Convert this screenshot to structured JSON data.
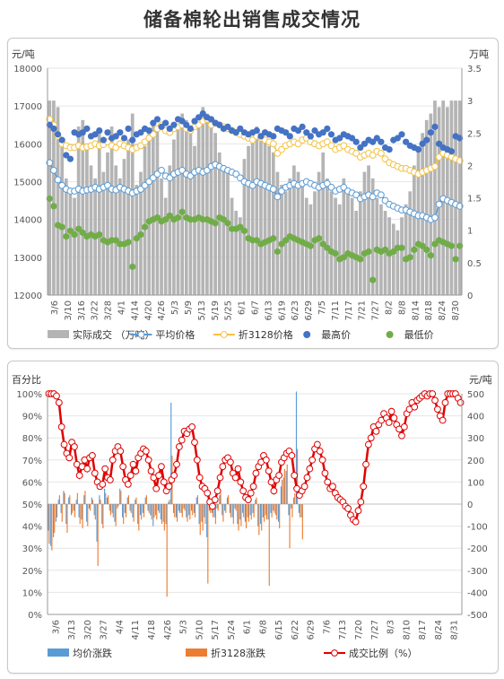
{
  "title": "储备棉轮出销售成交情况",
  "chart_data": [
    {
      "type": "line",
      "y_label_left": "元/吨",
      "y_label_right": "万吨",
      "ylim_left": [
        12000,
        18000
      ],
      "yticks_left": [
        "18000",
        "17000",
        "16000",
        "15000",
        "14000",
        "13000",
        "12000"
      ],
      "ylim_right": [
        0,
        3.5
      ],
      "yticks_right": [
        "3.5",
        "3",
        "2.5",
        "2",
        "1.5",
        "1",
        "0.5",
        "0"
      ],
      "x_ticks": [
        "3/6",
        "3/10",
        "3/16",
        "3/22",
        "3/28",
        "4/1",
        "4/14",
        "4/20",
        "4/26",
        "5/3",
        "5/9",
        "5/13",
        "5/19",
        "5/25",
        "6/1",
        "6/7",
        "6/13",
        "6/19",
        "6/23",
        "6/29",
        "7/5",
        "7/11",
        "7/17",
        "7/21",
        "7/27",
        "8/2",
        "8/8",
        "8/14",
        "8/18",
        "8/24",
        "8/30"
      ],
      "series": [
        {
          "name": "实际成交 （万吨）",
          "kind": "bar",
          "axis": "right",
          "color": "#b4b4b4",
          "values": [
            3.0,
            3.0,
            2.9,
            2.4,
            1.8,
            1.6,
            1.5,
            2.6,
            2.7,
            2.3,
            2.0,
            1.8,
            2.5,
            1.9,
            2.2,
            2.6,
            2.0,
            1.8,
            2.1,
            2.4,
            2.8,
            1.7,
            1.9,
            2.3,
            2.5,
            2.7,
            2.6,
            1.8,
            1.5,
            2.0,
            2.4,
            2.6,
            2.8,
            2.7,
            2.5,
            2.3,
            2.6,
            2.9,
            2.8,
            2.7,
            2.5,
            2.2,
            2.0,
            1.9,
            1.5,
            1.3,
            1.2,
            2.1,
            2.3,
            2.4,
            2.6,
            2.5,
            2.4,
            2.3,
            2.2,
            1.9,
            1.7,
            1.6,
            1.8,
            2.0,
            1.9,
            1.7,
            1.5,
            1.4,
            1.6,
            1.9,
            2.2,
            1.8,
            1.6,
            1.5,
            1.4,
            1.8,
            1.6,
            1.5,
            1.3,
            1.6,
            1.9,
            2.0,
            1.8,
            1.5,
            1.4,
            1.3,
            1.2,
            1.1,
            1.0,
            1.2,
            1.4,
            1.6,
            2.0,
            2.3,
            2.5,
            2.7,
            2.8,
            3.0,
            2.9,
            3.0,
            2.9,
            3.0,
            3.0,
            3.0
          ]
        },
        {
          "name": "平均价格",
          "kind": "line-marker",
          "axis": "left",
          "color": "#5b9bd5",
          "values": [
            15500,
            15300,
            15050,
            14900,
            14800,
            14750,
            14750,
            14800,
            14750,
            14780,
            14800,
            14850,
            14800,
            14850,
            14900,
            14800,
            14780,
            14850,
            14800,
            14750,
            14700,
            14750,
            14800,
            14900,
            15000,
            15100,
            15200,
            15300,
            15150,
            15100,
            15200,
            15250,
            15300,
            15200,
            15150,
            15250,
            15300,
            15250,
            15300,
            15400,
            15450,
            15400,
            15350,
            15300,
            15250,
            15200,
            15100,
            15000,
            14950,
            14900,
            15000,
            14950,
            14900,
            14850,
            14800,
            14600,
            14750,
            14850,
            14900,
            14950,
            14900,
            14950,
            15000,
            14950,
            14900,
            14850,
            14900,
            14950,
            14850,
            14750,
            14800,
            14850,
            14750,
            14700,
            14650,
            14550,
            14600,
            14650,
            14600,
            14700,
            14650,
            14500,
            14400,
            14350,
            14300,
            14250,
            14250,
            14200,
            14150,
            14100,
            14100,
            14050,
            14000,
            14050,
            14400,
            14550,
            14500,
            14450,
            14400,
            14350
          ]
        },
        {
          "name": "折3128价格",
          "kind": "line-marker",
          "axis": "left",
          "color": "#f5c242",
          "values": [
            16650,
            16500,
            16200,
            16000,
            15950,
            15900,
            15900,
            15950,
            15900,
            15920,
            15950,
            16000,
            15950,
            15980,
            16050,
            15950,
            15900,
            16000,
            15950,
            15900,
            15850,
            15900,
            15950,
            16050,
            16150,
            16250,
            16400,
            16500,
            16350,
            16300,
            16400,
            16450,
            16500,
            16400,
            16350,
            16450,
            16500,
            16600,
            16650,
            16500,
            16550,
            16500,
            16450,
            16400,
            16350,
            16300,
            16250,
            16200,
            16150,
            16100,
            16200,
            16150,
            16100,
            16050,
            16000,
            15750,
            15850,
            15950,
            16000,
            16050,
            16000,
            16100,
            16150,
            16050,
            16000,
            15950,
            16000,
            16050,
            15950,
            15850,
            15900,
            15950,
            15850,
            15800,
            15750,
            15650,
            15700,
            15750,
            15700,
            15800,
            15750,
            15600,
            15500,
            15450,
            15400,
            15350,
            15350,
            15300,
            15250,
            15200,
            15250,
            15300,
            15350,
            15400,
            15650,
            15750,
            15700,
            15650,
            15600,
            15550
          ]
        },
        {
          "name": "最高价",
          "kind": "scatter",
          "axis": "left",
          "color": "#4472c4",
          "values": [
            16500,
            16400,
            16250,
            16100,
            15700,
            15600,
            16300,
            16250,
            16300,
            16400,
            16200,
            16250,
            16350,
            16100,
            16300,
            16150,
            16200,
            16300,
            16150,
            16400,
            16100,
            16250,
            16300,
            16400,
            16350,
            16550,
            16650,
            16450,
            16550,
            16400,
            16500,
            16650,
            16600,
            16500,
            16400,
            16600,
            16700,
            16800,
            16700,
            16650,
            16550,
            16500,
            16400,
            16450,
            16350,
            16300,
            16400,
            16300,
            16250,
            16300,
            16350,
            16200,
            16300,
            16250,
            16200,
            16400,
            16350,
            16300,
            16200,
            16400,
            16350,
            16450,
            16300,
            16200,
            16350,
            16250,
            16300,
            16400,
            16250,
            16100,
            16150,
            16250,
            16200,
            16150,
            16050,
            15900,
            16000,
            16100,
            16050,
            16150,
            16050,
            15900,
            15850,
            16100,
            16150,
            16250,
            16050,
            15950,
            15900,
            15850,
            16000,
            16100,
            16300,
            16450,
            16000,
            15900,
            15850,
            15800,
            16200,
            16150
          ]
        },
        {
          "name": "最低价",
          "kind": "scatter",
          "axis": "left",
          "color": "#70ad47",
          "values": [
            14550,
            14350,
            13850,
            13800,
            13550,
            13700,
            13600,
            13750,
            13650,
            13550,
            13600,
            13550,
            13600,
            13450,
            13400,
            13450,
            13450,
            13350,
            13350,
            13400,
            12750,
            13500,
            13600,
            13800,
            13950,
            14000,
            14050,
            13950,
            14000,
            14100,
            14000,
            14050,
            14200,
            14050,
            14000,
            14000,
            14050,
            14000,
            14000,
            13950,
            13900,
            14050,
            14000,
            13900,
            13750,
            13750,
            13800,
            13700,
            13500,
            13450,
            13450,
            13350,
            13400,
            13450,
            13500,
            13150,
            13350,
            13450,
            13550,
            13500,
            13450,
            13400,
            13350,
            13300,
            13450,
            13500,
            13350,
            13250,
            13150,
            13100,
            12950,
            13000,
            13100,
            13050,
            13000,
            12950,
            13100,
            13150,
            12400,
            13200,
            13150,
            13200,
            13100,
            13150,
            13250,
            13250,
            12950,
            13000,
            13200,
            13350,
            13300,
            13200,
            13050,
            13350,
            13450,
            13400,
            13350,
            13300,
            12950,
            13300
          ]
        }
      ],
      "legend": "bottom"
    },
    {
      "type": "bar",
      "y_label_left": "百分比",
      "y_label_right": "元/吨",
      "ylim_left": [
        0,
        100
      ],
      "yticks_left": [
        "100%",
        "90%",
        "80%",
        "70%",
        "60%",
        "50%",
        "40%",
        "30%",
        "20%",
        "10%",
        "0%"
      ],
      "ylim_right": [
        -500,
        500
      ],
      "yticks_right": [
        "500",
        "400",
        "300",
        "200",
        "100",
        "0",
        "-100",
        "-200",
        "-300",
        "-400",
        "-500"
      ],
      "x_ticks": [
        "3/6",
        "3/13",
        "3/20",
        "3/27",
        "4/4",
        "4/11",
        "4/18",
        "4/26",
        "5/3",
        "5/10",
        "5/17",
        "5/24",
        "6/1",
        "6/8",
        "6/15",
        "6/22",
        "6/29",
        "7/6",
        "7/13",
        "7/20",
        "7/27",
        "8/3",
        "8/10",
        "8/17",
        "8/24",
        "8/31"
      ],
      "series": [
        {
          "name": "均价涨跌",
          "kind": "bar",
          "axis": "right",
          "color": "#5b9bd5",
          "values": [
            -120,
            -190,
            -150,
            -80,
            20,
            -40,
            60,
            -90,
            30,
            -50,
            -30,
            20,
            -60,
            -70,
            40,
            -80,
            -20,
            30,
            -50,
            -170,
            40,
            -90,
            70,
            30,
            -30,
            -40,
            -80,
            -20,
            70,
            -60,
            -40,
            30,
            -30,
            -60,
            20,
            -90,
            -50,
            -40,
            30,
            -30,
            -50,
            -100,
            -50,
            -30,
            -70,
            -80,
            -90,
            10,
            460,
            -40,
            -60,
            -30,
            -40,
            -20,
            -60,
            -50,
            -30,
            -40,
            30,
            -90,
            -80,
            -60,
            -150,
            -30,
            -40,
            -60,
            -20,
            40,
            -50,
            -30,
            30,
            -40,
            -60,
            -20,
            -90,
            -70,
            -40,
            -80,
            -60,
            -50,
            -40,
            20,
            -100,
            -90,
            -60,
            -50,
            -70,
            -40,
            -30,
            -50,
            -80,
            80,
            120,
            150,
            -50,
            -20,
            30,
            510,
            -40,
            -60
          ]
        },
        {
          "name": "折3128涨跌",
          "kind": "bar",
          "axis": "right",
          "color": "#ed7d31",
          "values": [
            -180,
            -210,
            -130,
            -60,
            40,
            -80,
            50,
            -130,
            40,
            -40,
            -60,
            50,
            -90,
            -110,
            60,
            -100,
            -30,
            20,
            -70,
            -280,
            20,
            -110,
            50,
            40,
            -50,
            -60,
            -100,
            -10,
            60,
            -90,
            -60,
            40,
            -40,
            -80,
            30,
            -120,
            -70,
            -60,
            40,
            -40,
            -70,
            -60,
            -70,
            -40,
            -90,
            -120,
            -420,
            20,
            220,
            -60,
            -80,
            -40,
            -60,
            -30,
            -80,
            -70,
            -50,
            -60,
            40,
            -140,
            -120,
            -90,
            -360,
            -40,
            -60,
            -90,
            -30,
            50,
            -80,
            -40,
            40,
            -60,
            -90,
            -30,
            -120,
            -100,
            -60,
            -110,
            -80,
            -70,
            -60,
            30,
            -140,
            -120,
            -80,
            -70,
            -370,
            -60,
            -40,
            -70,
            -110,
            110,
            160,
            180,
            -200,
            -60,
            50,
            250,
            -60,
            -160
          ]
        },
        {
          "name": "成交比例（%）",
          "kind": "line-marker",
          "axis": "left",
          "color": "#e00000",
          "values": [
            100,
            100,
            100,
            99,
            96,
            85,
            77,
            73,
            71,
            78,
            76,
            68,
            63,
            67,
            70,
            66,
            71,
            72,
            64,
            60,
            58,
            59,
            66,
            62,
            61,
            70,
            74,
            76,
            74,
            67,
            61,
            59,
            63,
            68,
            65,
            71,
            73,
            75,
            74,
            70,
            65,
            62,
            57,
            63,
            67,
            60,
            56,
            58,
            61,
            63,
            68,
            76,
            79,
            83,
            82,
            84,
            85,
            78,
            70,
            62,
            58,
            57,
            55,
            51,
            49,
            52,
            56,
            62,
            67,
            70,
            71,
            69,
            64,
            62,
            66,
            60,
            56,
            53,
            52,
            55,
            58,
            64,
            67,
            69,
            72,
            70,
            65,
            60,
            56,
            61,
            63,
            69,
            71,
            73,
            74,
            72,
            63,
            57,
            54,
            56,
            58,
            62,
            66,
            70,
            75,
            77,
            74,
            70,
            64,
            60,
            57,
            58,
            55,
            53,
            52,
            51,
            49,
            48,
            45,
            43,
            42,
            47,
            51,
            58,
            68,
            77,
            80,
            85,
            83,
            86,
            88,
            91,
            89,
            87,
            92,
            89,
            86,
            84,
            81,
            85,
            91,
            93,
            96,
            94,
            97,
            98,
            99,
            100,
            99,
            100,
            100,
            97,
            93,
            90,
            88,
            96,
            100,
            100,
            100,
            100,
            98,
            96
          ]
        }
      ],
      "legend": "bottom"
    }
  ]
}
